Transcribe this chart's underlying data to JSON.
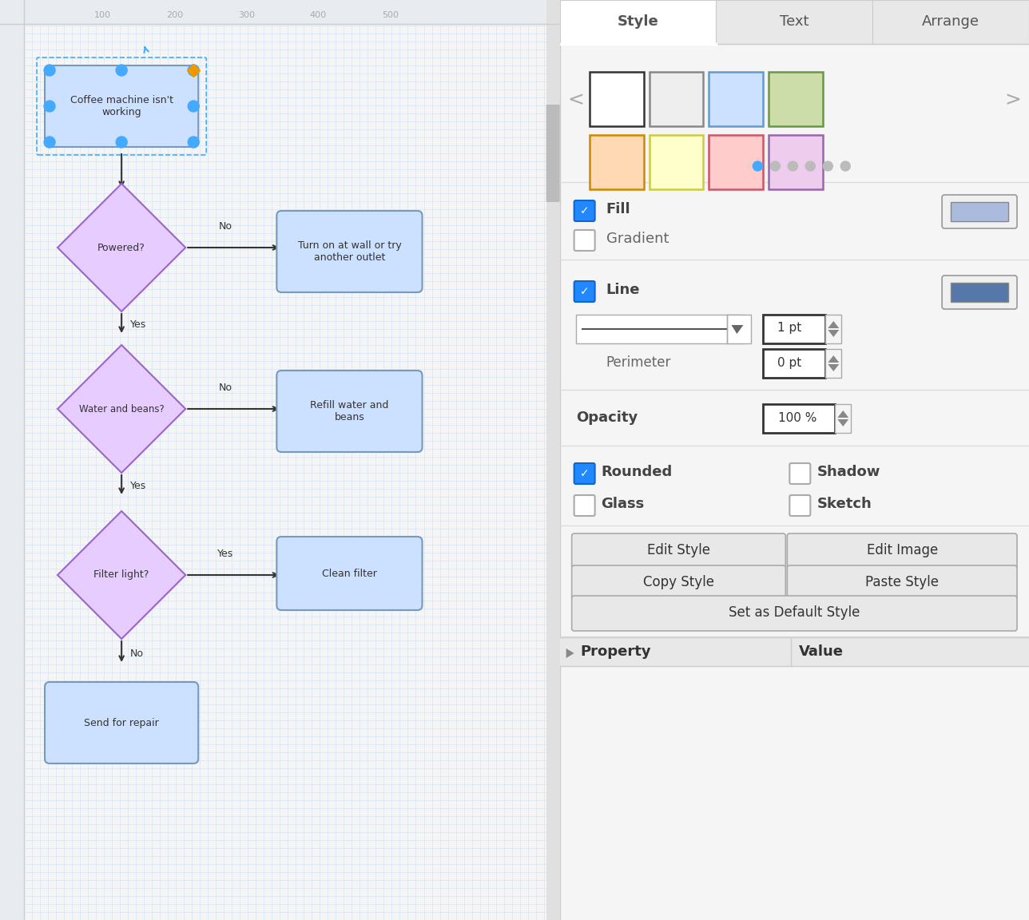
{
  "bg_color": "#f5f5f5",
  "flowchart_bg": "#eef2f7",
  "grid_color": "#d8e4f0",
  "panel_bg": "#ffffff",
  "panel_border": "#cccccc",
  "ruler_bg": "#e8ecf0",
  "ruler_text_color": "#aaaaaa",
  "ruler_ticks": [
    100,
    200,
    300,
    400,
    500
  ],
  "tabs": [
    "Style",
    "Text",
    "Arrange"
  ],
  "tab_bg_active": "#ffffff",
  "tab_bg_inactive": "#e8e8e8",
  "tab_text_color": "#555555",
  "color_swatches_row1": [
    {
      "fill": "#ffffff",
      "border": "#333333"
    },
    {
      "fill": "#eeeeee",
      "border": "#888888"
    },
    {
      "fill": "#cce0ff",
      "border": "#6699cc"
    },
    {
      "fill": "#ccddaa",
      "border": "#669944"
    }
  ],
  "color_swatches_row2": [
    {
      "fill": "#ffd9b3",
      "border": "#cc8800"
    },
    {
      "fill": "#ffffcc",
      "border": "#cccc44"
    },
    {
      "fill": "#ffcccc",
      "border": "#cc5566"
    },
    {
      "fill": "#eeccee",
      "border": "#9966aa"
    }
  ],
  "fill_color_swatch": "#aabbdd",
  "line_color_swatch": "#5577aa",
  "node_fill": "#cce0ff",
  "node_border": "#7799bb",
  "diamond_fill": "#e6ccff",
  "diamond_border": "#9966cc",
  "node_text_color": "#333333",
  "selection_color": "#44aaff",
  "arrow_color": "#333333",
  "separator_color": "#dddddd",
  "label_color": "#666666",
  "bold_label_color": "#444444"
}
